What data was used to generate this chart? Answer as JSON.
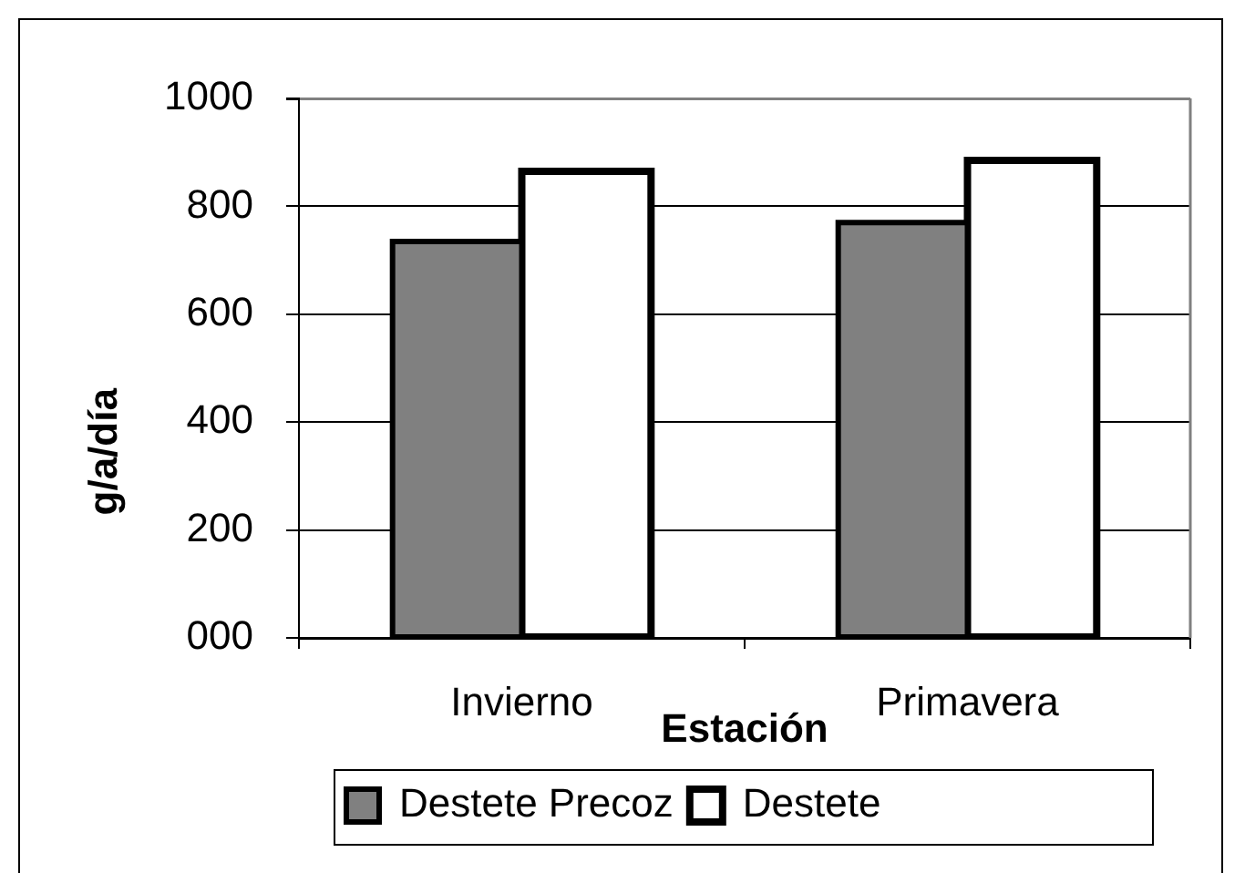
{
  "chart_data": {
    "type": "bar",
    "categories": [
      "Invierno",
      "Primavera"
    ],
    "series": [
      {
        "name": "Destete Precoz",
        "color": "#808080",
        "values": [
          735,
          770
        ]
      },
      {
        "name": "Destete",
        "color": "#ffffff",
        "values": [
          865,
          885
        ]
      }
    ],
    "xlabel": "Estación",
    "ylabel": "g/a/día",
    "ylim": [
      0,
      1000
    ],
    "yticks": [
      {
        "value": 0,
        "label": "000"
      },
      200,
      400,
      600,
      800,
      1000
    ],
    "grid": "y",
    "legend": "bottom"
  }
}
